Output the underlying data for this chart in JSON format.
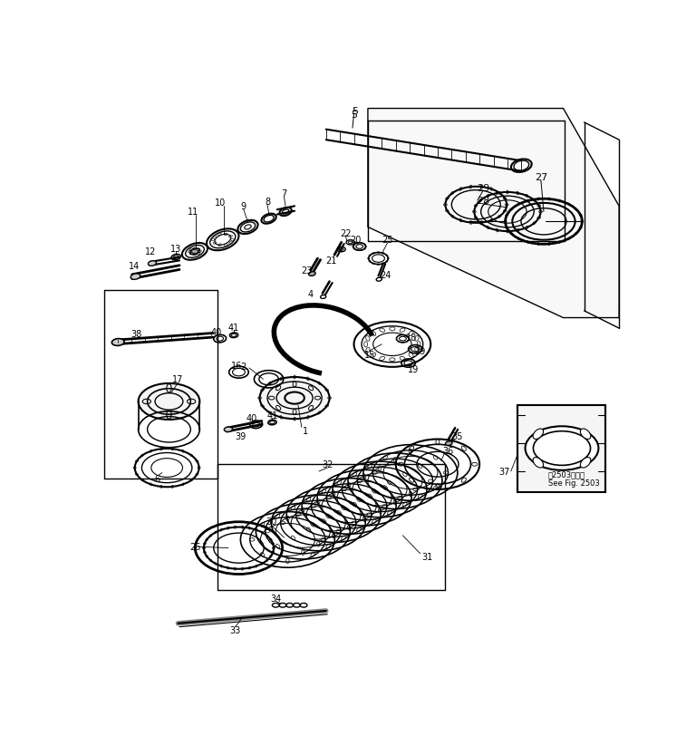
{
  "background_color": "#ffffff",
  "line_color": "#000000",
  "fig_width": 7.68,
  "fig_height": 8.12,
  "dpi": 100,
  "note_text1": "第2503図参照",
  "note_text2": "See Fig. 2503"
}
